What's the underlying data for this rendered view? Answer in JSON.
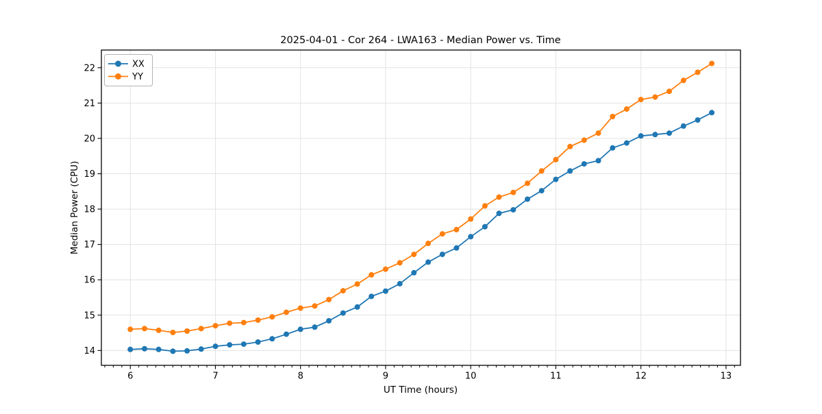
{
  "figure": {
    "background": "#ffffff"
  },
  "chart_data": {
    "type": "line",
    "title": "2025-04-01 - Cor 264 - LWA163 - Median Power vs. Time",
    "xlabel": "UT Time (hours)",
    "ylabel": "Median Power (CPU)",
    "x": [
      6.0,
      6.167,
      6.333,
      6.5,
      6.667,
      6.833,
      7.0,
      7.167,
      7.333,
      7.5,
      7.667,
      7.833,
      8.0,
      8.167,
      8.333,
      8.5,
      8.667,
      8.833,
      9.0,
      9.167,
      9.333,
      9.5,
      9.667,
      9.833,
      10.0,
      10.167,
      10.333,
      10.5,
      10.667,
      10.833,
      11.0,
      11.167,
      11.333,
      11.5,
      11.667,
      11.833,
      12.0,
      12.167,
      12.333,
      12.5,
      12.667,
      12.833
    ],
    "series": [
      {
        "name": "XX",
        "color": "#1f77b4",
        "values": [
          14.03,
          14.05,
          14.03,
          13.98,
          13.99,
          14.04,
          14.12,
          14.16,
          14.18,
          14.24,
          14.33,
          14.46,
          14.6,
          14.66,
          14.84,
          15.06,
          15.23,
          15.53,
          15.68,
          15.89,
          16.2,
          16.5,
          16.72,
          16.9,
          17.22,
          17.5,
          17.88,
          17.98,
          18.28,
          18.52,
          18.84,
          19.08,
          19.28,
          19.37,
          19.73,
          19.87,
          20.07,
          20.11,
          20.15,
          20.35,
          20.52,
          20.73
        ]
      },
      {
        "name": "YY",
        "color": "#ff7f0e",
        "values": [
          14.6,
          14.62,
          14.57,
          14.51,
          14.55,
          14.62,
          14.7,
          14.77,
          14.79,
          14.86,
          14.95,
          15.08,
          15.2,
          15.26,
          15.44,
          15.69,
          15.88,
          16.14,
          16.3,
          16.48,
          16.72,
          17.03,
          17.3,
          17.42,
          17.72,
          18.09,
          18.34,
          18.47,
          18.73,
          19.08,
          19.4,
          19.77,
          19.95,
          20.15,
          20.62,
          20.83,
          21.1,
          21.17,
          21.33,
          21.64,
          21.87,
          22.12
        ]
      }
    ],
    "xlim": [
      5.66,
      13.17
    ],
    "ylim": [
      13.58,
      22.5
    ],
    "x_ticks": [
      6,
      7,
      8,
      9,
      10,
      11,
      12,
      13
    ],
    "y_ticks": [
      14,
      15,
      16,
      17,
      18,
      19,
      20,
      21,
      22
    ],
    "x_minor_step": 0.1,
    "grid": true,
    "grid_color": "#e3e3e3",
    "legend_position": "upper-left",
    "marker": "circle",
    "marker_size": 4,
    "line_width": 1.8
  }
}
